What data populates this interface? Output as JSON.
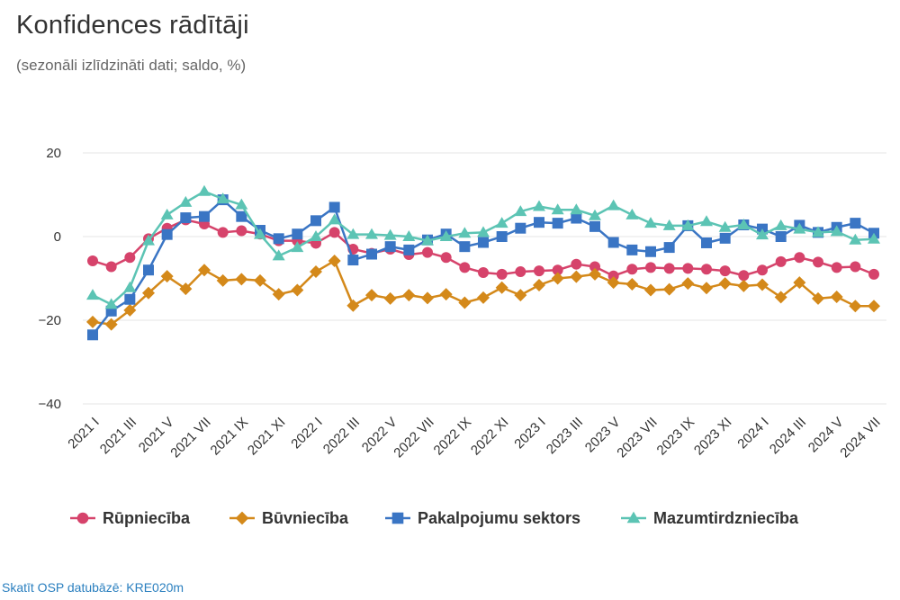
{
  "title": "Konfidences rādītāji",
  "subtitle": "(sezonāli izlīdzināti dati; saldo, %)",
  "footer_link": "Skatīt OSP datubāzē: KRE020m",
  "chart_data": {
    "type": "line",
    "title": "Konfidences rādītāji",
    "subtitle": "(sezonāli izlīdzināti dati; saldo, %)",
    "xlabel": "",
    "ylabel": "",
    "ylim": [
      -40,
      20
    ],
    "yticks": [
      20,
      0,
      -20,
      -40
    ],
    "ytick_labels": [
      "20",
      "0",
      "−20",
      "−40"
    ],
    "grid": true,
    "legend_position": "bottom",
    "x": [
      "2021 I",
      "2021 II",
      "2021 III",
      "2021 IV",
      "2021 V",
      "2021 VI",
      "2021 VII",
      "2021 VIII",
      "2021 IX",
      "2021 X",
      "2021 XI",
      "2021 XII",
      "2022 I",
      "2022 II",
      "2022 III",
      "2022 IV",
      "2022 V",
      "2022 VI",
      "2022 VII",
      "2022 VIII",
      "2022 IX",
      "2022 X",
      "2022 XI",
      "2022 XII",
      "2023 I",
      "2023 II",
      "2023 III",
      "2023 IV",
      "2023 V",
      "2023 VI",
      "2023 VII",
      "2023 VIII",
      "2023 IX",
      "2023 X",
      "2023 XI",
      "2023 XII",
      "2024 I",
      "2024 II",
      "2024 III",
      "2024 IV",
      "2024 V",
      "2024 VI",
      "2024 VII"
    ],
    "x_tick_labels": [
      "2021 I",
      "2021 III",
      "2021 V",
      "2021 VII",
      "2021 IX",
      "2021 XI",
      "2022 I",
      "2022 III",
      "2022 V",
      "2022 VII",
      "2022 IX",
      "2022 XI",
      "2023 I",
      "2023 III",
      "2023 V",
      "2023 VII",
      "2023 IX",
      "2023 XI",
      "2024 I",
      "2024 III",
      "2024 V",
      "2024 VII"
    ],
    "series": [
      {
        "name": "Rūpniecība",
        "color": "#d6436b",
        "marker": "circle",
        "values": [
          -5.8,
          -7.2,
          -5.0,
          -0.5,
          2.0,
          4.0,
          3.0,
          1.0,
          1.4,
          0.6,
          -1.0,
          -1.0,
          -1.6,
          1.0,
          -3.0,
          -4.0,
          -3.0,
          -4.3,
          -3.8,
          -5.0,
          -7.4,
          -8.6,
          -9.0,
          -8.4,
          -8.2,
          -8.0,
          -6.6,
          -7.2,
          -9.4,
          -7.8,
          -7.4,
          -7.6,
          -7.6,
          -7.8,
          -8.2,
          -9.3,
          -8.0,
          -6.0,
          -5.0,
          -6.1,
          -7.4,
          -7.2,
          -9.0
        ]
      },
      {
        "name": "Būvniecība",
        "color": "#d4891a",
        "marker": "diamond",
        "values": [
          -20.4,
          -21.0,
          -17.6,
          -13.5,
          -9.5,
          -12.5,
          -8.0,
          -10.5,
          -10.2,
          -10.5,
          -13.8,
          -12.8,
          -8.4,
          -5.8,
          -16.5,
          -14.0,
          -14.8,
          -14.0,
          -14.7,
          -13.8,
          -15.8,
          -14.6,
          -12.2,
          -14.0,
          -11.6,
          -10.0,
          -9.6,
          -9.0,
          -11.0,
          -11.4,
          -12.8,
          -12.6,
          -11.2,
          -12.3,
          -11.2,
          -11.8,
          -11.5,
          -14.5,
          -11.0,
          -14.8,
          -14.4,
          -16.6,
          -16.6
        ]
      },
      {
        "name": "Pakalpojumu sektors",
        "color": "#3a75c4",
        "marker": "square",
        "values": [
          -23.5,
          -17.8,
          -15.0,
          -8.0,
          0.5,
          4.5,
          4.8,
          8.8,
          4.8,
          1.5,
          -0.5,
          0.6,
          3.8,
          7.0,
          -5.6,
          -4.2,
          -2.4,
          -3.2,
          -0.8,
          0.6,
          -2.4,
          -1.4,
          0.0,
          2.0,
          3.4,
          3.2,
          4.4,
          2.4,
          -1.4,
          -3.2,
          -3.6,
          -2.6,
          2.6,
          -1.5,
          -0.4,
          2.8,
          1.8,
          0.0,
          2.7,
          1.0,
          2.2,
          3.2,
          0.8
        ]
      },
      {
        "name": "Mazumtirdzniecība",
        "color": "#5cc4b4",
        "marker": "triangle",
        "values": [
          -14.0,
          -16.2,
          -12.2,
          -1.0,
          5.2,
          8.2,
          10.8,
          9.0,
          7.6,
          0.5,
          -4.6,
          -2.6,
          0.0,
          4.0,
          0.5,
          0.5,
          0.3,
          0.0,
          -1.0,
          0.0,
          0.8,
          1.0,
          3.2,
          6.0,
          7.2,
          6.4,
          6.4,
          5.0,
          7.4,
          5.2,
          3.2,
          2.6,
          2.6,
          3.6,
          2.2,
          2.8,
          0.4,
          2.6,
          1.8,
          1.0,
          1.2,
          -0.8,
          -0.6
        ]
      }
    ]
  }
}
